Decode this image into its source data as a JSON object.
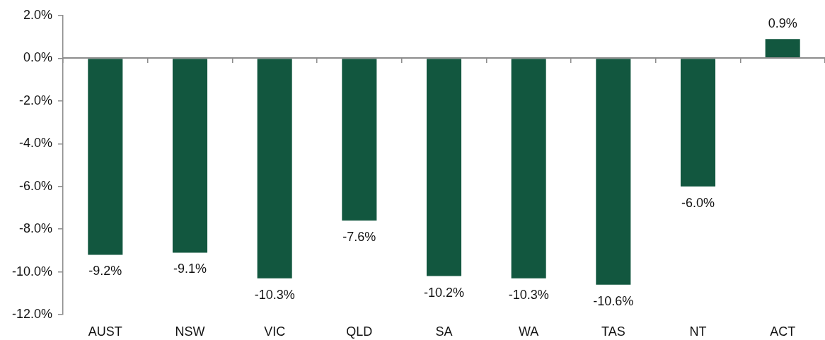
{
  "chart_data": {
    "type": "bar",
    "categories": [
      "AUST",
      "NSW",
      "VIC",
      "QLD",
      "SA",
      "WA",
      "TAS",
      "NT",
      "ACT"
    ],
    "values": [
      -9.2,
      -9.1,
      -10.3,
      -7.6,
      -10.2,
      -10.3,
      -10.6,
      -6.0,
      0.9
    ],
    "value_labels": [
      "-9.2%",
      "-9.1%",
      "-10.3%",
      "-7.6%",
      "-10.2%",
      "-10.3%",
      "-10.6%",
      "-6.0%",
      "0.9%"
    ],
    "color": "#12573f",
    "ylim": [
      -12,
      2
    ],
    "yticks": [
      {
        "value": 2,
        "label": "2.0%"
      },
      {
        "value": 0,
        "label": "0.0%"
      },
      {
        "value": -2,
        "label": "-2.0%"
      },
      {
        "value": -4,
        "label": "-4.0%"
      },
      {
        "value": -6,
        "label": "-6.0%"
      },
      {
        "value": -8,
        "label": "-8.0%"
      },
      {
        "value": -10,
        "label": "-10.0%"
      },
      {
        "value": -12,
        "label": "-12.0%"
      }
    ],
    "ref_lines": [
      {
        "axis": "y",
        "value": 0,
        "color": "#8c8c8c"
      }
    ],
    "grid": false,
    "legend": false
  }
}
